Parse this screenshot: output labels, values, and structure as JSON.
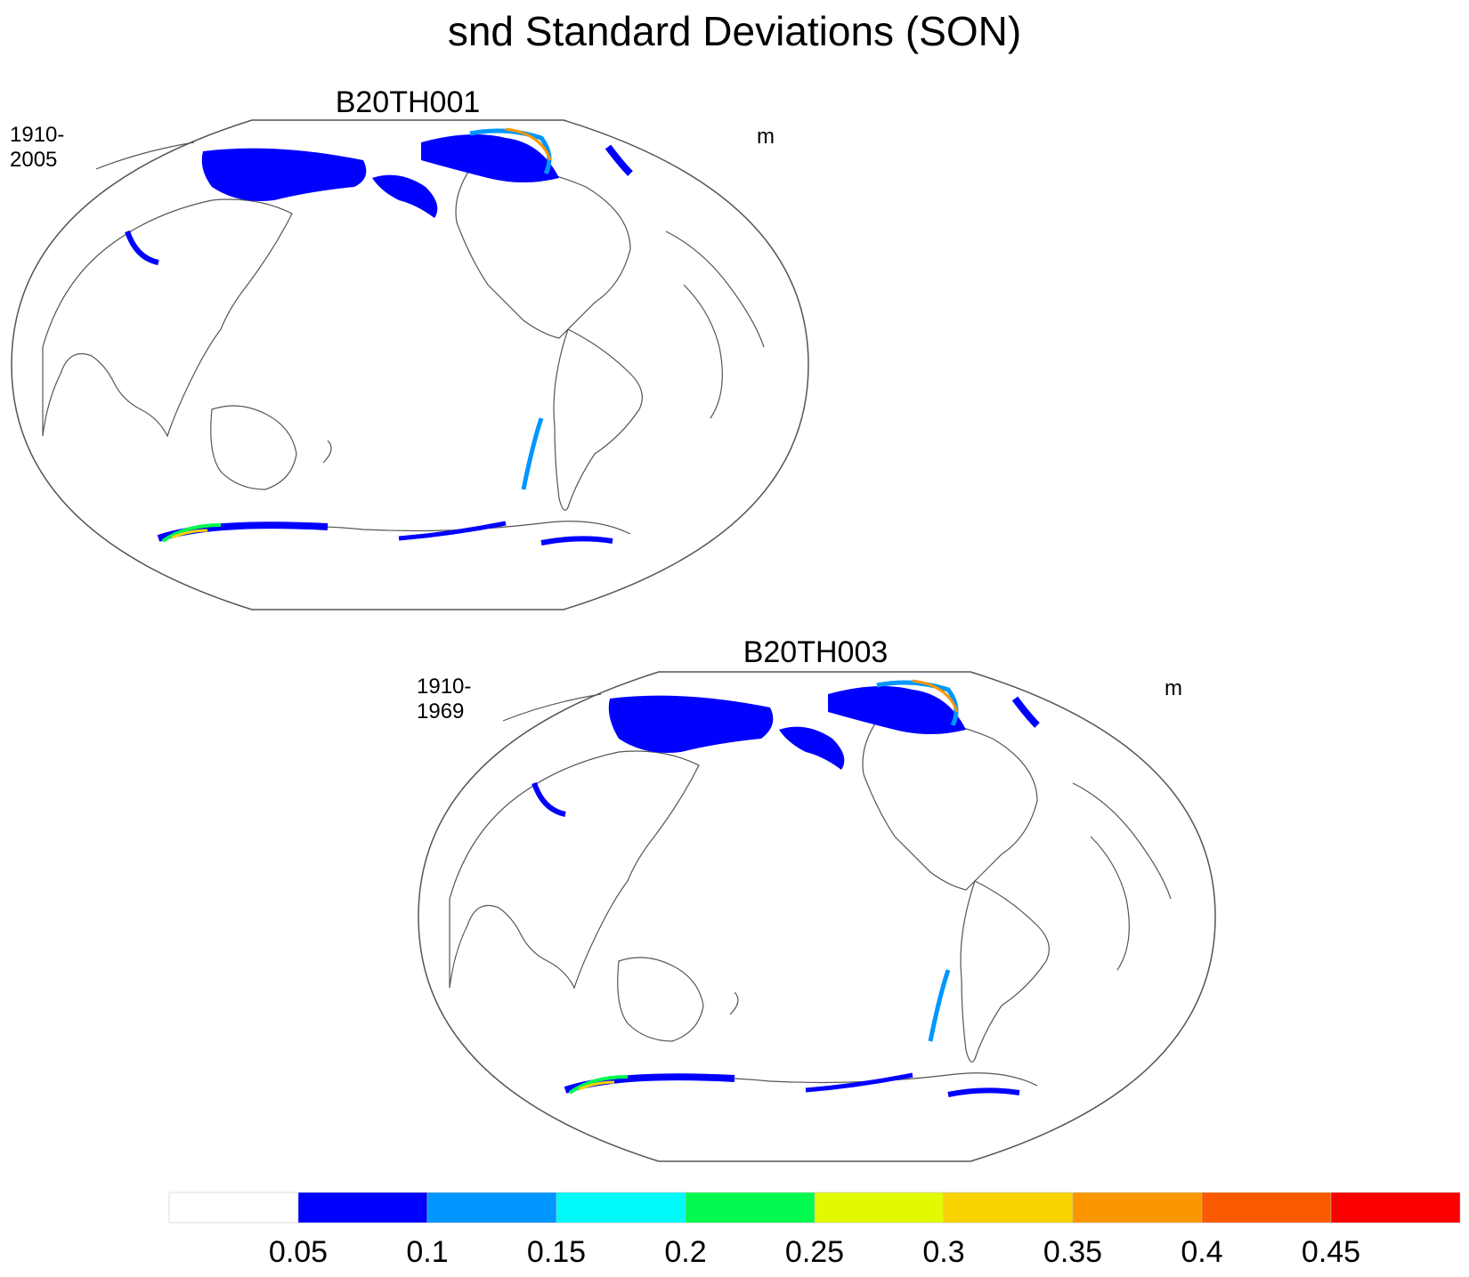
{
  "title": "snd Standard Deviations (SON)",
  "panels": [
    {
      "title": "B20TH001",
      "left_string": "1910-2005",
      "right_string": "m"
    },
    {
      "title": "B20TH003",
      "left_string": "1910-1969",
      "right_string": "m"
    }
  ],
  "colorbar": {
    "colors": [
      "#ffffff",
      "#0000ff",
      "#0096ff",
      "#00fafa",
      "#00fa50",
      "#e1fa00",
      "#fad200",
      "#fa9600",
      "#fa5a00",
      "#fa0000"
    ],
    "labels": [
      "0.05",
      "0.1",
      "0.15",
      "0.2",
      "0.25",
      "0.3",
      "0.35",
      "0.4",
      "0.45"
    ]
  }
}
